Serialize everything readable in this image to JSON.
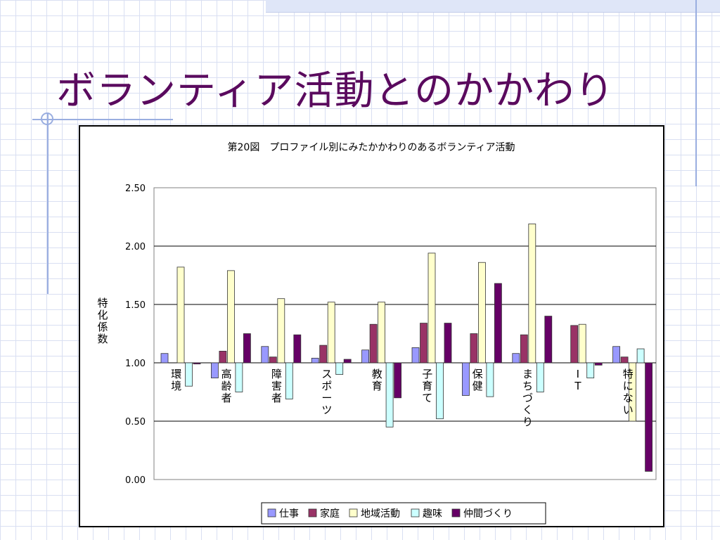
{
  "slide": {
    "title": "ボランティア活動とのかかわり"
  },
  "chart_data": {
    "type": "bar",
    "title": "第20図　プロファイル別にみたかかわりのあるボランティア活動",
    "xlabel": "",
    "ylabel": "特化係数",
    "ylim": [
      0,
      2.5
    ],
    "yticks": [
      "0.00",
      "0.50",
      "1.00",
      "1.50",
      "2.00",
      "2.50"
    ],
    "baseline": 1.0,
    "grid": true,
    "legend_position": "bottom",
    "categories": [
      "環境",
      "高齢者",
      "障害者",
      "スポーツ",
      "教育",
      "子育て",
      "保健",
      "まちづくり",
      "IT",
      "特にない"
    ],
    "series": [
      {
        "name": "仕事",
        "color": "#9999ff",
        "values": [
          1.08,
          0.87,
          1.14,
          1.04,
          1.11,
          1.13,
          0.72,
          1.08,
          null,
          1.14
        ]
      },
      {
        "name": "家庭",
        "color": "#993366",
        "values": [
          null,
          1.1,
          1.05,
          1.15,
          1.33,
          1.34,
          1.25,
          1.24,
          1.32,
          1.05
        ]
      },
      {
        "name": "地域活動",
        "color": "#ffffcc",
        "values": [
          1.82,
          1.79,
          1.55,
          1.52,
          1.52,
          1.94,
          1.86,
          2.19,
          1.33,
          0.5
        ]
      },
      {
        "name": "趣味",
        "color": "#ccffff",
        "values": [
          0.8,
          0.75,
          0.69,
          0.9,
          0.45,
          0.52,
          0.71,
          0.75,
          0.87,
          1.12
        ]
      },
      {
        "name": "仲間づくり",
        "color": "#660066",
        "values": [
          0.99,
          1.25,
          1.24,
          1.03,
          0.7,
          1.34,
          1.68,
          1.4,
          0.98,
          0.07
        ]
      }
    ]
  }
}
